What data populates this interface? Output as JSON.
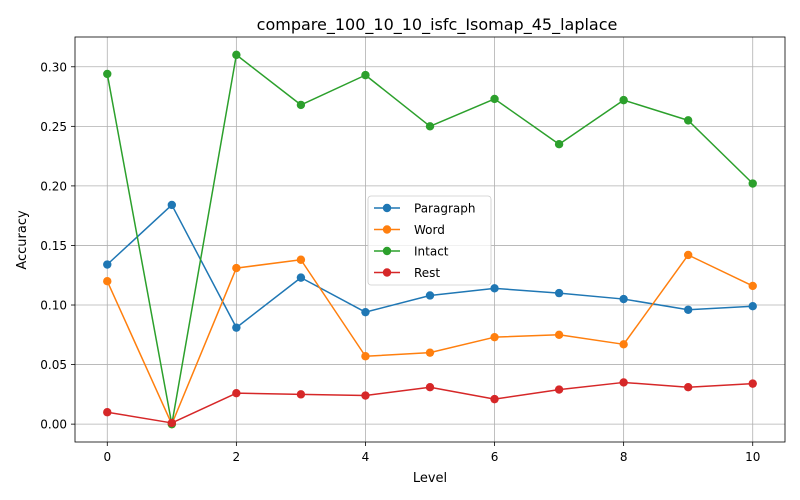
{
  "chart_data": {
    "type": "line",
    "title": "compare_100_10_10_isfc_Isomap_45_laplace",
    "xlabel": "Level",
    "ylabel": "Accuracy",
    "x": [
      0,
      1,
      2,
      3,
      4,
      5,
      6,
      7,
      8,
      9,
      10
    ],
    "xlim": [
      -0.5,
      10.5
    ],
    "ylim": [
      -0.015,
      0.325
    ],
    "xticks": [
      0,
      2,
      4,
      6,
      8,
      10
    ],
    "xtick_labels": [
      "0",
      "2",
      "4",
      "6",
      "8",
      "10"
    ],
    "yticks": [
      0.0,
      0.05,
      0.1,
      0.15,
      0.2,
      0.25,
      0.3
    ],
    "ytick_labels": [
      "0.00",
      "0.05",
      "0.10",
      "0.15",
      "0.20",
      "0.25",
      "0.30"
    ],
    "grid": true,
    "legend_position": "center",
    "series": [
      {
        "name": "Paragraph",
        "color": "#1f77b4",
        "values": [
          0.134,
          0.184,
          0.081,
          0.123,
          0.094,
          0.108,
          0.114,
          0.11,
          0.105,
          0.096,
          0.099
        ]
      },
      {
        "name": "Word",
        "color": "#ff7f0e",
        "values": [
          0.12,
          0.0,
          0.131,
          0.138,
          0.057,
          0.06,
          0.073,
          0.075,
          0.067,
          0.142,
          0.116
        ]
      },
      {
        "name": "Intact",
        "color": "#2ca02c",
        "values": [
          0.294,
          0.0,
          0.31,
          0.268,
          0.293,
          0.25,
          0.273,
          0.235,
          0.272,
          0.255,
          0.202
        ]
      },
      {
        "name": "Rest",
        "color": "#d62728",
        "values": [
          0.01,
          0.001,
          0.026,
          0.025,
          0.024,
          0.031,
          0.021,
          0.029,
          0.035,
          0.031,
          0.034
        ]
      }
    ]
  }
}
